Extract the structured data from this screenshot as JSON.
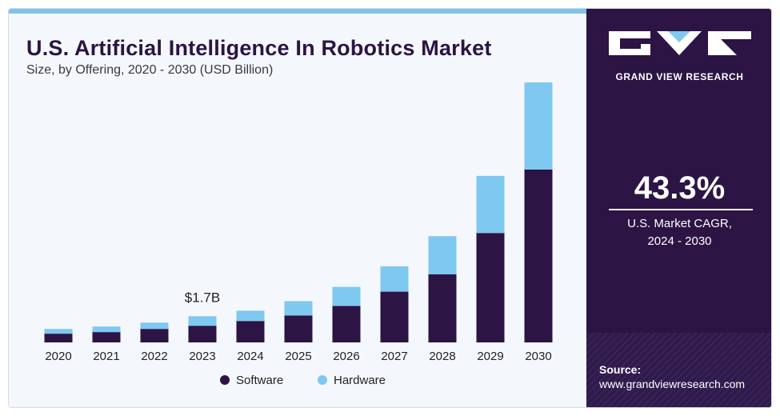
{
  "header": {
    "title": "U.S. Artificial Intelligence In Robotics Market",
    "subtitle": "Size, by Offering, 2020 - 2030 (USD Billion)"
  },
  "chart_data": {
    "type": "bar",
    "stacked": true,
    "categories": [
      "2020",
      "2021",
      "2022",
      "2023",
      "2024",
      "2025",
      "2026",
      "2027",
      "2028",
      "2029",
      "2030"
    ],
    "series": [
      {
        "name": "Software",
        "color": "#2c1444",
        "values": [
          0.55,
          0.65,
          0.85,
          1.05,
          1.35,
          1.7,
          2.3,
          3.2,
          4.3,
          6.9,
          10.9
        ]
      },
      {
        "name": "Hardware",
        "color": "#7fc8f0",
        "values": [
          0.3,
          0.35,
          0.4,
          0.6,
          0.65,
          0.9,
          1.2,
          1.6,
          2.4,
          3.6,
          5.5
        ]
      }
    ],
    "ylim": [
      0,
      16.5
    ],
    "annotation": {
      "category": "2023",
      "text": "$1.7B"
    },
    "legend": "bottom",
    "grid": false
  },
  "side_panel": {
    "brand": "GRAND VIEW RESEARCH",
    "cagr_value": "43.3%",
    "cagr_label_line1": "U.S. Market CAGR,",
    "cagr_label_line2": "2024 - 2030",
    "source_label": "Source:",
    "source_url": "www.grandviewresearch.com"
  }
}
